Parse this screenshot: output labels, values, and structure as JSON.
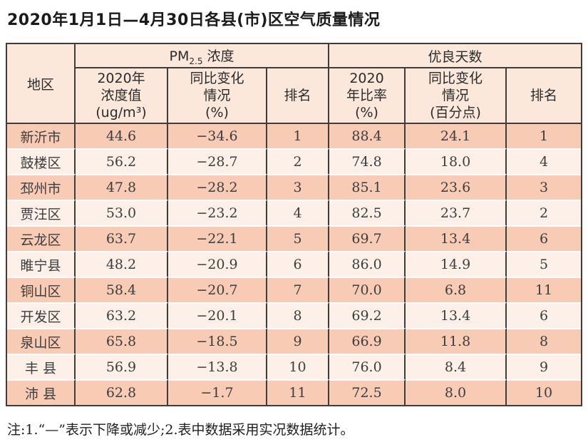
{
  "title": "2020年1月1日—4月30日各县(市)区空气质量情况",
  "note": "注:1.“—”表示下降或减少;2.表中数据采用实况数据统计。",
  "colors": {
    "row_odd": "#f8ccb4",
    "row_even": "#fcf0e9",
    "header_bg": "#fbe8da",
    "border": "#403c39",
    "separator": "#ffffff"
  },
  "table": {
    "header": {
      "region": "地区",
      "pm_group": {
        "prefix": "PM",
        "sub": "2.5",
        "suffix": "浓度"
      },
      "days_group": "优良天数",
      "pm_value": "2020年\n浓度值\n(ug/m³)",
      "pm_change": "同比变化\n情况\n(%)",
      "pm_rank": "排名",
      "days_rate": "2020\n年比率\n(%)",
      "days_change": "同比变化\n情况\n(百分点)",
      "days_rank": "排名"
    },
    "rows": [
      {
        "region": "新沂市",
        "pm_value": "44.6",
        "pm_change": "−34.6",
        "pm_rank": "1",
        "days_rate": "88.4",
        "days_change": "24.1",
        "days_rank": "1"
      },
      {
        "region": "鼓楼区",
        "pm_value": "56.2",
        "pm_change": "−28.7",
        "pm_rank": "2",
        "days_rate": "74.8",
        "days_change": "18.0",
        "days_rank": "4"
      },
      {
        "region": "邳州市",
        "pm_value": "47.8",
        "pm_change": "−28.2",
        "pm_rank": "3",
        "days_rate": "85.1",
        "days_change": "23.6",
        "days_rank": "3"
      },
      {
        "region": "贾汪区",
        "pm_value": "53.0",
        "pm_change": "−23.2",
        "pm_rank": "4",
        "days_rate": "82.5",
        "days_change": "23.7",
        "days_rank": "2"
      },
      {
        "region": "云龙区",
        "pm_value": "63.7",
        "pm_change": "−22.1",
        "pm_rank": "5",
        "days_rate": "69.7",
        "days_change": "13.4",
        "days_rank": "6"
      },
      {
        "region": "睢宁县",
        "pm_value": "48.2",
        "pm_change": "−20.9",
        "pm_rank": "6",
        "days_rate": "86.0",
        "days_change": "14.9",
        "days_rank": "5"
      },
      {
        "region": "铜山区",
        "pm_value": "58.4",
        "pm_change": "−20.7",
        "pm_rank": "7",
        "days_rate": "70.0",
        "days_change": "6.8",
        "days_rank": "11"
      },
      {
        "region": "开发区",
        "pm_value": "63.2",
        "pm_change": "−20.1",
        "pm_rank": "8",
        "days_rate": "69.2",
        "days_change": "13.4",
        "days_rank": "6"
      },
      {
        "region": "泉山区",
        "pm_value": "65.8",
        "pm_change": "−18.5",
        "pm_rank": "9",
        "days_rate": "66.9",
        "days_change": "11.8",
        "days_rank": "8"
      },
      {
        "region": "丰 县",
        "pm_value": "56.9",
        "pm_change": "−13.8",
        "pm_rank": "10",
        "days_rate": "76.0",
        "days_change": "8.4",
        "days_rank": "9"
      },
      {
        "region": "沛 县",
        "pm_value": "62.8",
        "pm_change": "−1.7",
        "pm_rank": "11",
        "days_rate": "72.5",
        "days_change": "8.0",
        "days_rank": "10"
      }
    ]
  }
}
